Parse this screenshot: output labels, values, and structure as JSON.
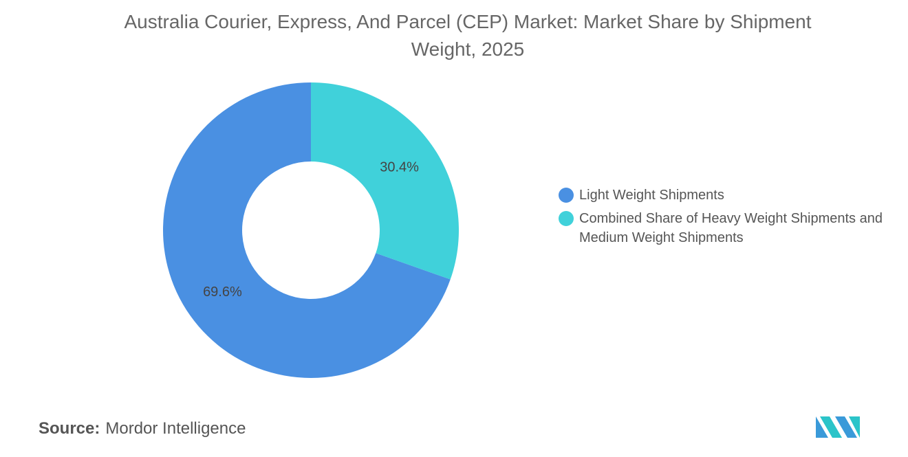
{
  "chart_data": {
    "type": "pie",
    "donut": true,
    "title": "Australia Courier, Express, And Parcel (CEP) Market: Market Share by Shipment Weight, 2025",
    "categories": [
      "Light Weight Shipments",
      "Combined Share of Heavy Weight Shipments and Medium Weight Shipments"
    ],
    "values": [
      69.6,
      30.4
    ],
    "value_labels": [
      "69.6%",
      "30.4%"
    ],
    "colors": [
      "#4a90e2",
      "#40d1da"
    ],
    "legend": "right",
    "source_label": "Source:",
    "source": "Mordor Intelligence"
  }
}
